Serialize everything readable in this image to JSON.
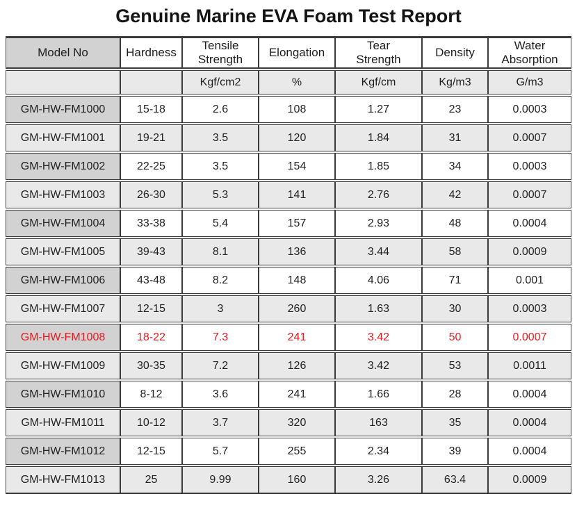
{
  "title": "Genuine Marine EVA Foam Test Report",
  "colors": {
    "highlight_red": "#e8191d",
    "model_header_bg": "#d2d2d2",
    "alt_row_bg": "#e9e9e9",
    "row_bg": "#ffffff",
    "border": "#3b3b3b"
  },
  "table": {
    "columns": [
      {
        "label": "Model No",
        "unit": ""
      },
      {
        "label": "Hardness",
        "unit": ""
      },
      {
        "label": "Tensile\nStrength",
        "unit": "Kgf/cm2"
      },
      {
        "label": "Elongation",
        "unit": "%"
      },
      {
        "label": "Tear\nStrength",
        "unit": "Kgf/cm"
      },
      {
        "label": "Density",
        "unit": "Kg/m3"
      },
      {
        "label": "Water\nAbsorption",
        "unit": "G/m3"
      }
    ],
    "rows": [
      {
        "model": "GM-HW-FM1000",
        "hardness": "15-18",
        "tensile": "2.6",
        "elongation": "108",
        "tear": "1.27",
        "density": "23",
        "water": "0.0003",
        "highlight": false
      },
      {
        "model": "GM-HW-FM1001",
        "hardness": "19-21",
        "tensile": "3.5",
        "elongation": "120",
        "tear": "1.84",
        "density": "31",
        "water": "0.0007",
        "highlight": false
      },
      {
        "model": "GM-HW-FM1002",
        "hardness": "22-25",
        "tensile": "3.5",
        "elongation": "154",
        "tear": "1.85",
        "density": "34",
        "water": "0.0003",
        "highlight": false
      },
      {
        "model": "GM-HW-FM1003",
        "hardness": "26-30",
        "tensile": "5.3",
        "elongation": "141",
        "tear": "2.76",
        "density": "42",
        "water": "0.0007",
        "highlight": false
      },
      {
        "model": "GM-HW-FM1004",
        "hardness": "33-38",
        "tensile": "5.4",
        "elongation": "157",
        "tear": "2.93",
        "density": "48",
        "water": "0.0004",
        "highlight": false
      },
      {
        "model": "GM-HW-FM1005",
        "hardness": "39-43",
        "tensile": "8.1",
        "elongation": "136",
        "tear": "3.44",
        "density": "58",
        "water": "0.0009",
        "highlight": false
      },
      {
        "model": "GM-HW-FM1006",
        "hardness": "43-48",
        "tensile": "8.2",
        "elongation": "148",
        "tear": "4.06",
        "density": "71",
        "water": "0.001",
        "highlight": false
      },
      {
        "model": "GM-HW-FM1007",
        "hardness": "12-15",
        "tensile": "3",
        "elongation": "260",
        "tear": "1.63",
        "density": "30",
        "water": "0.0003",
        "highlight": false
      },
      {
        "model": "GM-HW-FM1008",
        "hardness": "18-22",
        "tensile": "7.3",
        "elongation": "241",
        "tear": "3.42",
        "density": "50",
        "water": "0.0007",
        "highlight": true
      },
      {
        "model": "GM-HW-FM1009",
        "hardness": "30-35",
        "tensile": "7.2",
        "elongation": "126",
        "tear": "3.42",
        "density": "53",
        "water": "0.0011",
        "highlight": false
      },
      {
        "model": "GM-HW-FM1010",
        "hardness": "8-12",
        "tensile": "3.6",
        "elongation": "241",
        "tear": "1.66",
        "density": "28",
        "water": "0.0004",
        "highlight": false
      },
      {
        "model": "GM-HW-FM1011",
        "hardness": "10-12",
        "tensile": "3.7",
        "elongation": "320",
        "tear": "163",
        "density": "35",
        "water": "0.0004",
        "highlight": false
      },
      {
        "model": "GM-HW-FM1012",
        "hardness": "12-15",
        "tensile": "5.7",
        "elongation": "255",
        "tear": "2.34",
        "density": "39",
        "water": "0.0004",
        "highlight": false
      },
      {
        "model": "GM-HW-FM1013",
        "hardness": "25",
        "tensile": "9.99",
        "elongation": "160",
        "tear": "3.26",
        "density": "63.4",
        "water": "0.0009",
        "highlight": false
      }
    ]
  }
}
